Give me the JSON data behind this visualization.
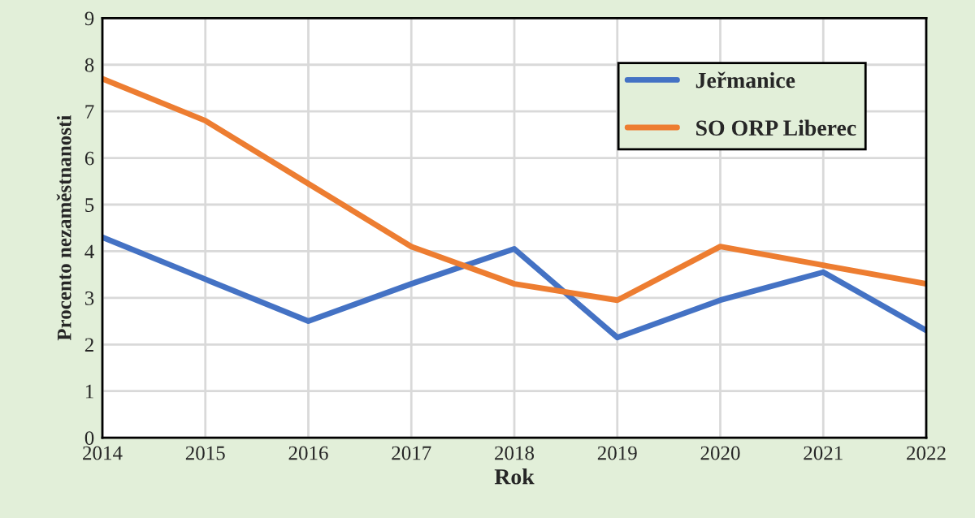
{
  "chart_data": {
    "type": "line",
    "xlabel": "Rok",
    "ylabel": "Procento nezaměstnanosti",
    "x": [
      2014,
      2015,
      2016,
      2017,
      2018,
      2019,
      2020,
      2021,
      2022
    ],
    "series": [
      {
        "name": "Jeřmanice",
        "color": "#4472c4",
        "values": [
          4.3,
          3.4,
          2.5,
          3.3,
          4.05,
          2.15,
          2.95,
          3.55,
          2.3
        ]
      },
      {
        "name": "SO ORP Liberec",
        "color": "#ed7d31",
        "values": [
          7.7,
          6.8,
          5.45,
          4.1,
          3.3,
          2.95,
          4.1,
          3.7,
          3.3
        ]
      }
    ],
    "xlim": [
      2014,
      2022
    ],
    "xticks": [
      2014,
      2015,
      2016,
      2017,
      2018,
      2019,
      2020,
      2021,
      2022
    ],
    "ylim": [
      0,
      9
    ],
    "yticks": [
      0,
      1,
      2,
      3,
      4,
      5,
      6,
      7,
      8,
      9
    ],
    "grid": true,
    "legend": "top right",
    "marker": "none",
    "line_style": "solid"
  }
}
